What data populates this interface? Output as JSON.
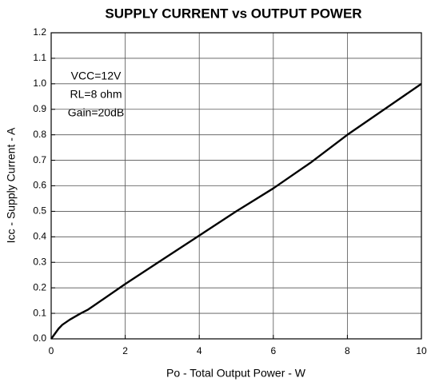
{
  "chart_data": {
    "type": "line",
    "title": "SUPPLY CURRENT vs OUTPUT POWER",
    "x_label": "Po - Total Output Power - W",
    "y_label": "Icc - Supply Current - A",
    "annotations": [
      "VCC=12V",
      "RL=8 ohm",
      "Gain=20dB"
    ],
    "x": [
      0,
      0.1,
      0.2,
      0.3,
      0.5,
      0.8,
      1,
      2,
      3,
      4,
      5,
      6,
      7,
      8,
      9,
      10
    ],
    "series": [
      {
        "name": "Icc",
        "color": "#000000",
        "values": [
          0,
          0.02,
          0.04,
          0.055,
          0.075,
          0.1,
          0.115,
          0.215,
          0.31,
          0.405,
          0.5,
          0.59,
          0.69,
          0.8,
          0.9,
          1.0
        ]
      }
    ],
    "xlim": [
      0,
      10
    ],
    "xticks": [
      0,
      2,
      4,
      6,
      8,
      10
    ],
    "ylim": [
      0,
      1.2
    ],
    "yticks": [
      {
        "value": 0,
        "label": "0.0"
      },
      0.1,
      0.2,
      0.3,
      0.4,
      0.5,
      0.6,
      0.7,
      0.8,
      0.9,
      {
        "value": 1,
        "label": "1.0"
      },
      1.1,
      1.2
    ],
    "grid": true
  }
}
